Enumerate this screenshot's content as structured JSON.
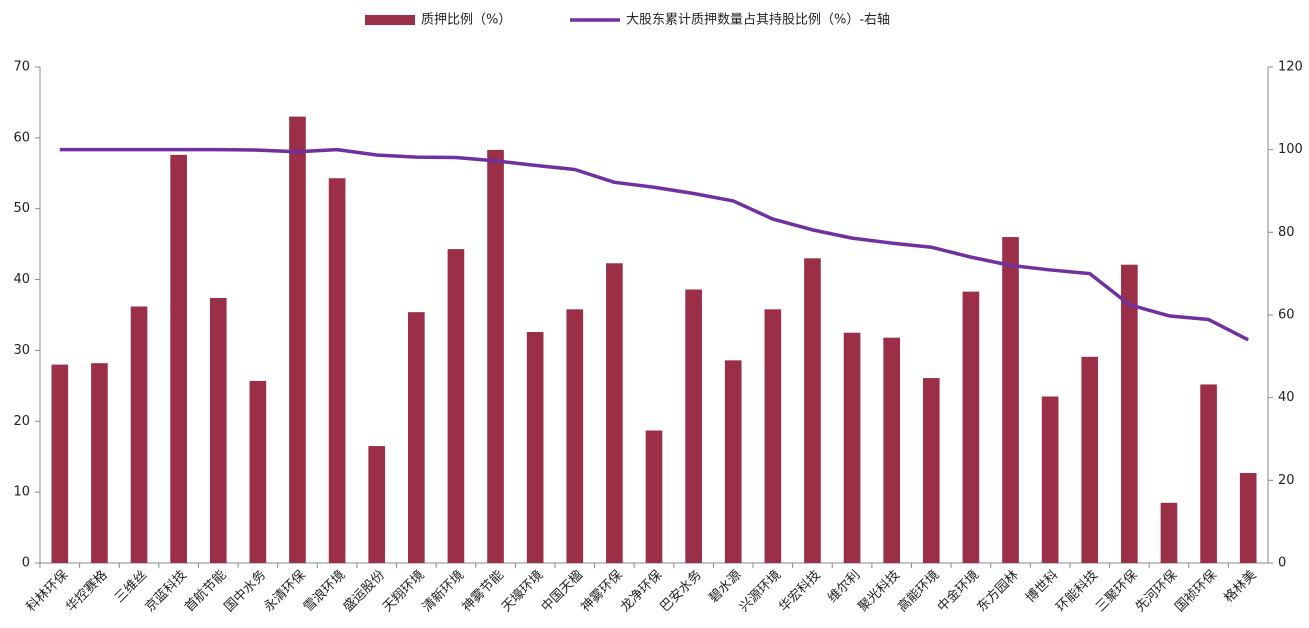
{
  "chart_data": {
    "type": "bar_line",
    "categories": [
      "科林环保",
      "华控赛格",
      "三维丝",
      "京蓝科技",
      "首航节能",
      "国中水务",
      "永清环保",
      "雪浪环境",
      "盛运股份",
      "天翔环境",
      "清新环境",
      "神雾节能",
      "天壕环境",
      "中国天楹",
      "神雾环保",
      "龙净环保",
      "巴安水务",
      "碧水源",
      "兴源环境",
      "华宏科技",
      "维尔利",
      "聚光科技",
      "高能环境",
      "中金环境",
      "东方园林",
      "博世科",
      "环能科技",
      "三聚环保",
      "先河环保",
      "国祯环保",
      "格林美"
    ],
    "series": [
      {
        "name": "质押比例（%）",
        "type": "bar",
        "color": "#9b2f47",
        "values": [
          28,
          28.2,
          36.2,
          57.6,
          37.4,
          25.7,
          63,
          54.3,
          16.5,
          35.4,
          44.3,
          58.3,
          32.6,
          35.8,
          42.3,
          18.7,
          38.6,
          28.6,
          35.8,
          43,
          32.5,
          31.8,
          26.1,
          38.3,
          46,
          23.5,
          29.1,
          42.1,
          8.5,
          25.2,
          12.7
        ]
      },
      {
        "name": "大股东累计质押数量占其持股比例（%）-右轴",
        "type": "line",
        "axis": "y2",
        "color": "#7030a0",
        "values": [
          100,
          100,
          100,
          100,
          100,
          99.9,
          99.5,
          100,
          98.7,
          98.2,
          98.1,
          97.3,
          96.2,
          95.2,
          92.1,
          90.9,
          89.4,
          87.6,
          83.2,
          80.6,
          78.6,
          77.4,
          76.4,
          74,
          72,
          70.9,
          70,
          62.5,
          59.8,
          58.9,
          54
        ]
      }
    ],
    "ylim": [
      0,
      70
    ],
    "yticks": [
      0,
      10,
      20,
      30,
      40,
      50,
      60,
      70
    ],
    "y2lim": [
      0,
      120
    ],
    "y2ticks": [
      0,
      20,
      40,
      60,
      80,
      100,
      120
    ]
  }
}
